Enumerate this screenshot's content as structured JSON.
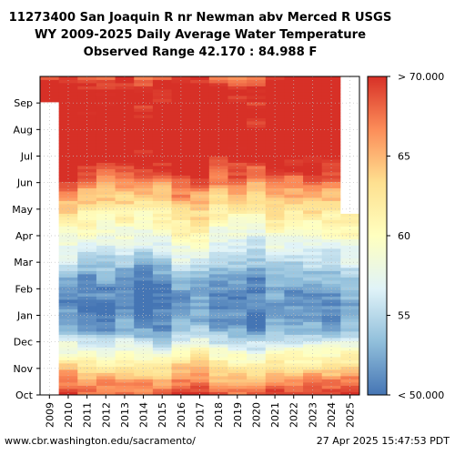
{
  "title": {
    "line1": "11273400 San Joaquin R nr Newman abv Merced R USGS",
    "line2": "WY 2009-2025 Daily Average Water Temperature",
    "line3": "Observed Range 42.170 : 84.988 F"
  },
  "footer": {
    "left": "www.cbr.washington.edu/sacramento/",
    "right": "27 Apr 2025 15:47:53 PDT"
  },
  "colors": {
    "cold": "#4575b4",
    "cool": "#91bfdb",
    "pale": "#e0f3f8",
    "neutral": "#ffffbf",
    "warm": "#fee090",
    "orange": "#fc8d59",
    "hot": "#d73027",
    "gap": "#ffffff"
  },
  "chart_data": {
    "type": "heatmap",
    "title": "11273400 San Joaquin R nr Newman abv Merced R USGS WY 2009-2025 Daily Average Water Temperature",
    "subtitle": "Observed Range 42.170 : 84.988 F",
    "x_categories": [
      "2009",
      "2010",
      "2011",
      "2012",
      "2013",
      "2014",
      "2015",
      "2016",
      "2017",
      "2018",
      "2019",
      "2020",
      "2021",
      "2022",
      "2023",
      "2024",
      "2025"
    ],
    "y_categories": [
      "Oct",
      "Nov",
      "Dec",
      "Jan",
      "Feb",
      "Mar",
      "Apr",
      "May",
      "Jun",
      "Jul",
      "Aug",
      "Sep"
    ],
    "colorbar": {
      "min": 50,
      "max": 70,
      "ticks": [
        {
          "value": 50,
          "label": "< 50.000"
        },
        {
          "value": 55,
          "label": "55"
        },
        {
          "value": 60,
          "label": "60"
        },
        {
          "value": 65,
          "label": "65"
        },
        {
          "value": 70,
          "label": "> 70.000"
        }
      ],
      "scheme": "RdYlBu reversed"
    },
    "approx_monthly_mean_F": {
      "Oct": 67,
      "Nov": 60,
      "Dec": 53,
      "Jan": 51,
      "Feb": 53,
      "Mar": 57,
      "Apr": 61,
      "May": 65,
      "Jun": 70,
      "Jul": 73,
      "Aug": 72,
      "Sep": 71
    },
    "notes": {
      "2009": "record begins in late September",
      "2025": "record ends in late April"
    },
    "grid": true
  }
}
